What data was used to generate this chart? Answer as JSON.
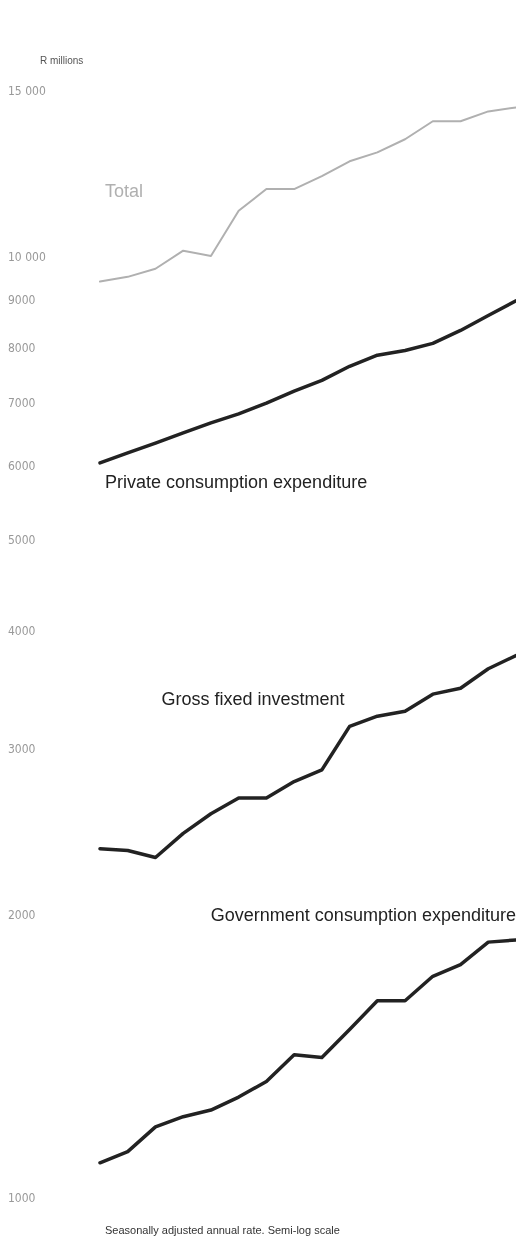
{
  "chart_data": {
    "type": "line",
    "ylabel": "R millions",
    "annotations": [
      "Seasonally adjusted annual rate. Semi-log scale"
    ],
    "categories": [
      null,
      null,
      null,
      null,
      null,
      null,
      null,
      null,
      null,
      null,
      null,
      null,
      null,
      null,
      null,
      null
    ],
    "log": true,
    "grid": false,
    "legend": false,
    "marker": "none",
    "line_style": "solid",
    "tick_labels": "y",
    "ylim": [
      1000,
      15000
    ],
    "yticks": [
      1000,
      2000,
      3000,
      4000,
      5000,
      6000,
      7000,
      8000,
      9000,
      {
        "value": 10000,
        "label": "10 000"
      },
      {
        "value": 15000,
        "label": "15 000"
      }
    ],
    "series": [
      {
        "name": "Total",
        "color": "#b0b0b0",
        "values": [
          9410,
          9520,
          9710,
          10150,
          10020,
          11190,
          11800,
          11800,
          12180,
          12630,
          12910,
          13330,
          13930,
          13930,
          14270,
          14410
        ]
      },
      {
        "name": "Private consumption expenditure",
        "color": "#222222",
        "values": [
          6040,
          6190,
          6340,
          6500,
          6660,
          6810,
          6990,
          7200,
          7390,
          7650,
          7860,
          7950,
          8090,
          8350,
          8660,
          8980
        ]
      },
      {
        "name": "Gross fixed investment",
        "color": "#222222",
        "values": [
          2350,
          2340,
          2300,
          2440,
          2560,
          2660,
          2660,
          2770,
          2850,
          3170,
          3250,
          3290,
          3430,
          3480,
          3650,
          3770
        ]
      },
      {
        "name": "Government consumption expenditure",
        "color": "#222222",
        "values": [
          1090,
          1120,
          1190,
          1220,
          1240,
          1280,
          1330,
          1420,
          1410,
          1510,
          1620,
          1620,
          1720,
          1770,
          1870,
          1880
        ]
      }
    ]
  }
}
